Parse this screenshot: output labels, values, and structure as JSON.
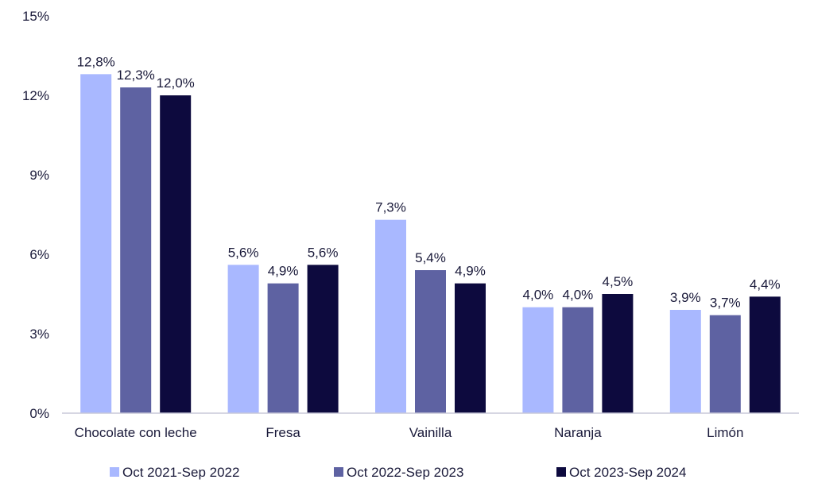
{
  "chart_data": {
    "type": "bar",
    "categories": [
      "Chocolate con leche",
      "Fresa",
      "Vainilla",
      "Naranja",
      "Limón"
    ],
    "series": [
      {
        "name": "Oct 2021-Sep 2022",
        "color": "#a9b8ff",
        "values": [
          12.8,
          5.6,
          7.3,
          4.0,
          3.9
        ],
        "labels": [
          "12,8%",
          "5,6%",
          "7,3%",
          "4,0%",
          "3,9%"
        ]
      },
      {
        "name": "Oct 2022-Sep 2023",
        "color": "#5e62a2",
        "values": [
          12.3,
          4.9,
          5.4,
          4.0,
          3.7
        ],
        "labels": [
          "12,3%",
          "4,9%",
          "5,4%",
          "4,0%",
          "3,7%"
        ]
      },
      {
        "name": "Oct 2023-Sep 2024",
        "color": "#0d0a3e",
        "values": [
          12.0,
          5.6,
          4.9,
          4.5,
          4.4
        ],
        "labels": [
          "12,0%",
          "5,6%",
          "4,9%",
          "4,5%",
          "4,4%"
        ]
      }
    ],
    "yticks": [
      "0%",
      "3%",
      "6%",
      "9%",
      "12%",
      "15%"
    ],
    "ytick_values": [
      0,
      3,
      6,
      9,
      12,
      15
    ],
    "ylim": [
      0,
      15
    ],
    "legend_position": "bottom",
    "grid": false
  }
}
